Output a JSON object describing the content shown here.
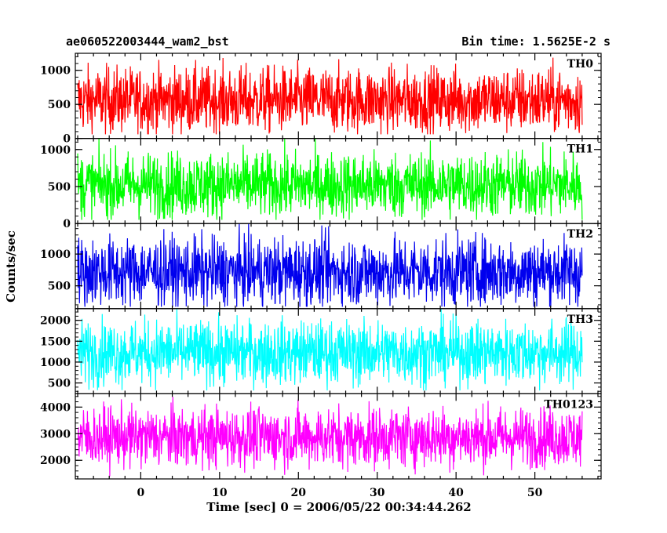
{
  "chart_data": {
    "type": "line",
    "title_left": "ae060522003444_wam2_bst",
    "title_right": "Bin time: 1.5625E-2 s",
    "xlabel": "Time [sec] 0 = 2006/05/22 00:34:44.262",
    "ylabel": "Counts/sec",
    "xlim": [
      -8.3,
      58.4
    ],
    "x_ticks": [
      0,
      10,
      20,
      30,
      40,
      50
    ],
    "x_tick_labels": [
      "0",
      "10",
      "20",
      "30",
      "40",
      "50"
    ],
    "data_x_range": [
      -8.0,
      56.0
    ],
    "panels": [
      {
        "name": "TH0",
        "color": "#ff0000",
        "ylim": [
          0,
          1250
        ],
        "ticks": [
          0,
          500,
          1000
        ],
        "tick_labels": [
          "0",
          "500",
          "1000"
        ],
        "mean": 560,
        "noise": 240,
        "min_floor": 60,
        "max_cap": 1250
      },
      {
        "name": "TH1",
        "color": "#00ff00",
        "ylim": [
          0,
          1150
        ],
        "ticks": [
          0,
          500,
          1000
        ],
        "tick_labels": [
          "0",
          "500",
          "1000"
        ],
        "mean": 520,
        "noise": 220,
        "min_floor": 50,
        "max_cap": 1150
      },
      {
        "name": "TH2",
        "color": "#0000ee",
        "ylim": [
          140,
          1480
        ],
        "ticks": [
          500,
          1000
        ],
        "tick_labels": [
          "500",
          "1000"
        ],
        "mean": 720,
        "noise": 270,
        "min_floor": 170,
        "max_cap": 1480
      },
      {
        "name": "TH3",
        "color": "#00ffff",
        "ylim": [
          240,
          2280
        ],
        "ticks": [
          500,
          1000,
          1500,
          2000
        ],
        "tick_labels": [
          "500",
          "1000",
          "1500",
          "2000"
        ],
        "mean": 1230,
        "noise": 380,
        "min_floor": 320,
        "max_cap": 2280
      },
      {
        "name": "TH0123",
        "color": "#ff00ff",
        "ylim": [
          1300,
          4500
        ],
        "ticks": [
          2000,
          3000,
          4000
        ],
        "tick_labels": [
          "2000",
          "3000",
          "4000"
        ],
        "mean": 2870,
        "noise": 560,
        "min_floor": 1320,
        "max_cap": 4500
      }
    ]
  }
}
